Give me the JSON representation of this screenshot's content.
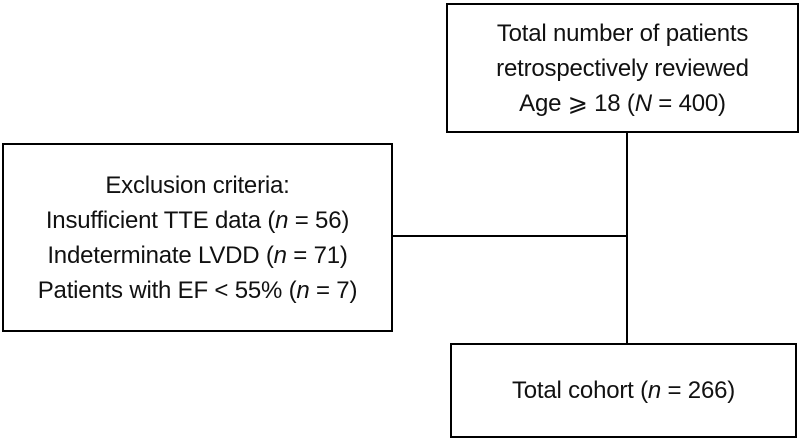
{
  "colors": {
    "background": "#ffffff",
    "box_border": "#000000",
    "text": "#111111",
    "connector": "#000000"
  },
  "top_box": {
    "line1": "Total number of patients",
    "line2": "retrospectively reviewed",
    "line3_prefix": "Age ⩾ 18 (",
    "line3_var": "N",
    "line3_suffix": " = 400)"
  },
  "exclusion_box": {
    "title": "Exclusion criteria:",
    "items": [
      {
        "prefix": "Insufficient TTE data (",
        "var": "n",
        "suffix": " = 56)"
      },
      {
        "prefix": "Indeterminate LVDD (",
        "var": "n",
        "suffix": " = 71)"
      },
      {
        "prefix": "Patients with EF < 55% (",
        "var": "n",
        "suffix": " = 7)"
      }
    ]
  },
  "cohort_box": {
    "prefix": "Total cohort (",
    "var": "n",
    "suffix": " = 266)"
  }
}
